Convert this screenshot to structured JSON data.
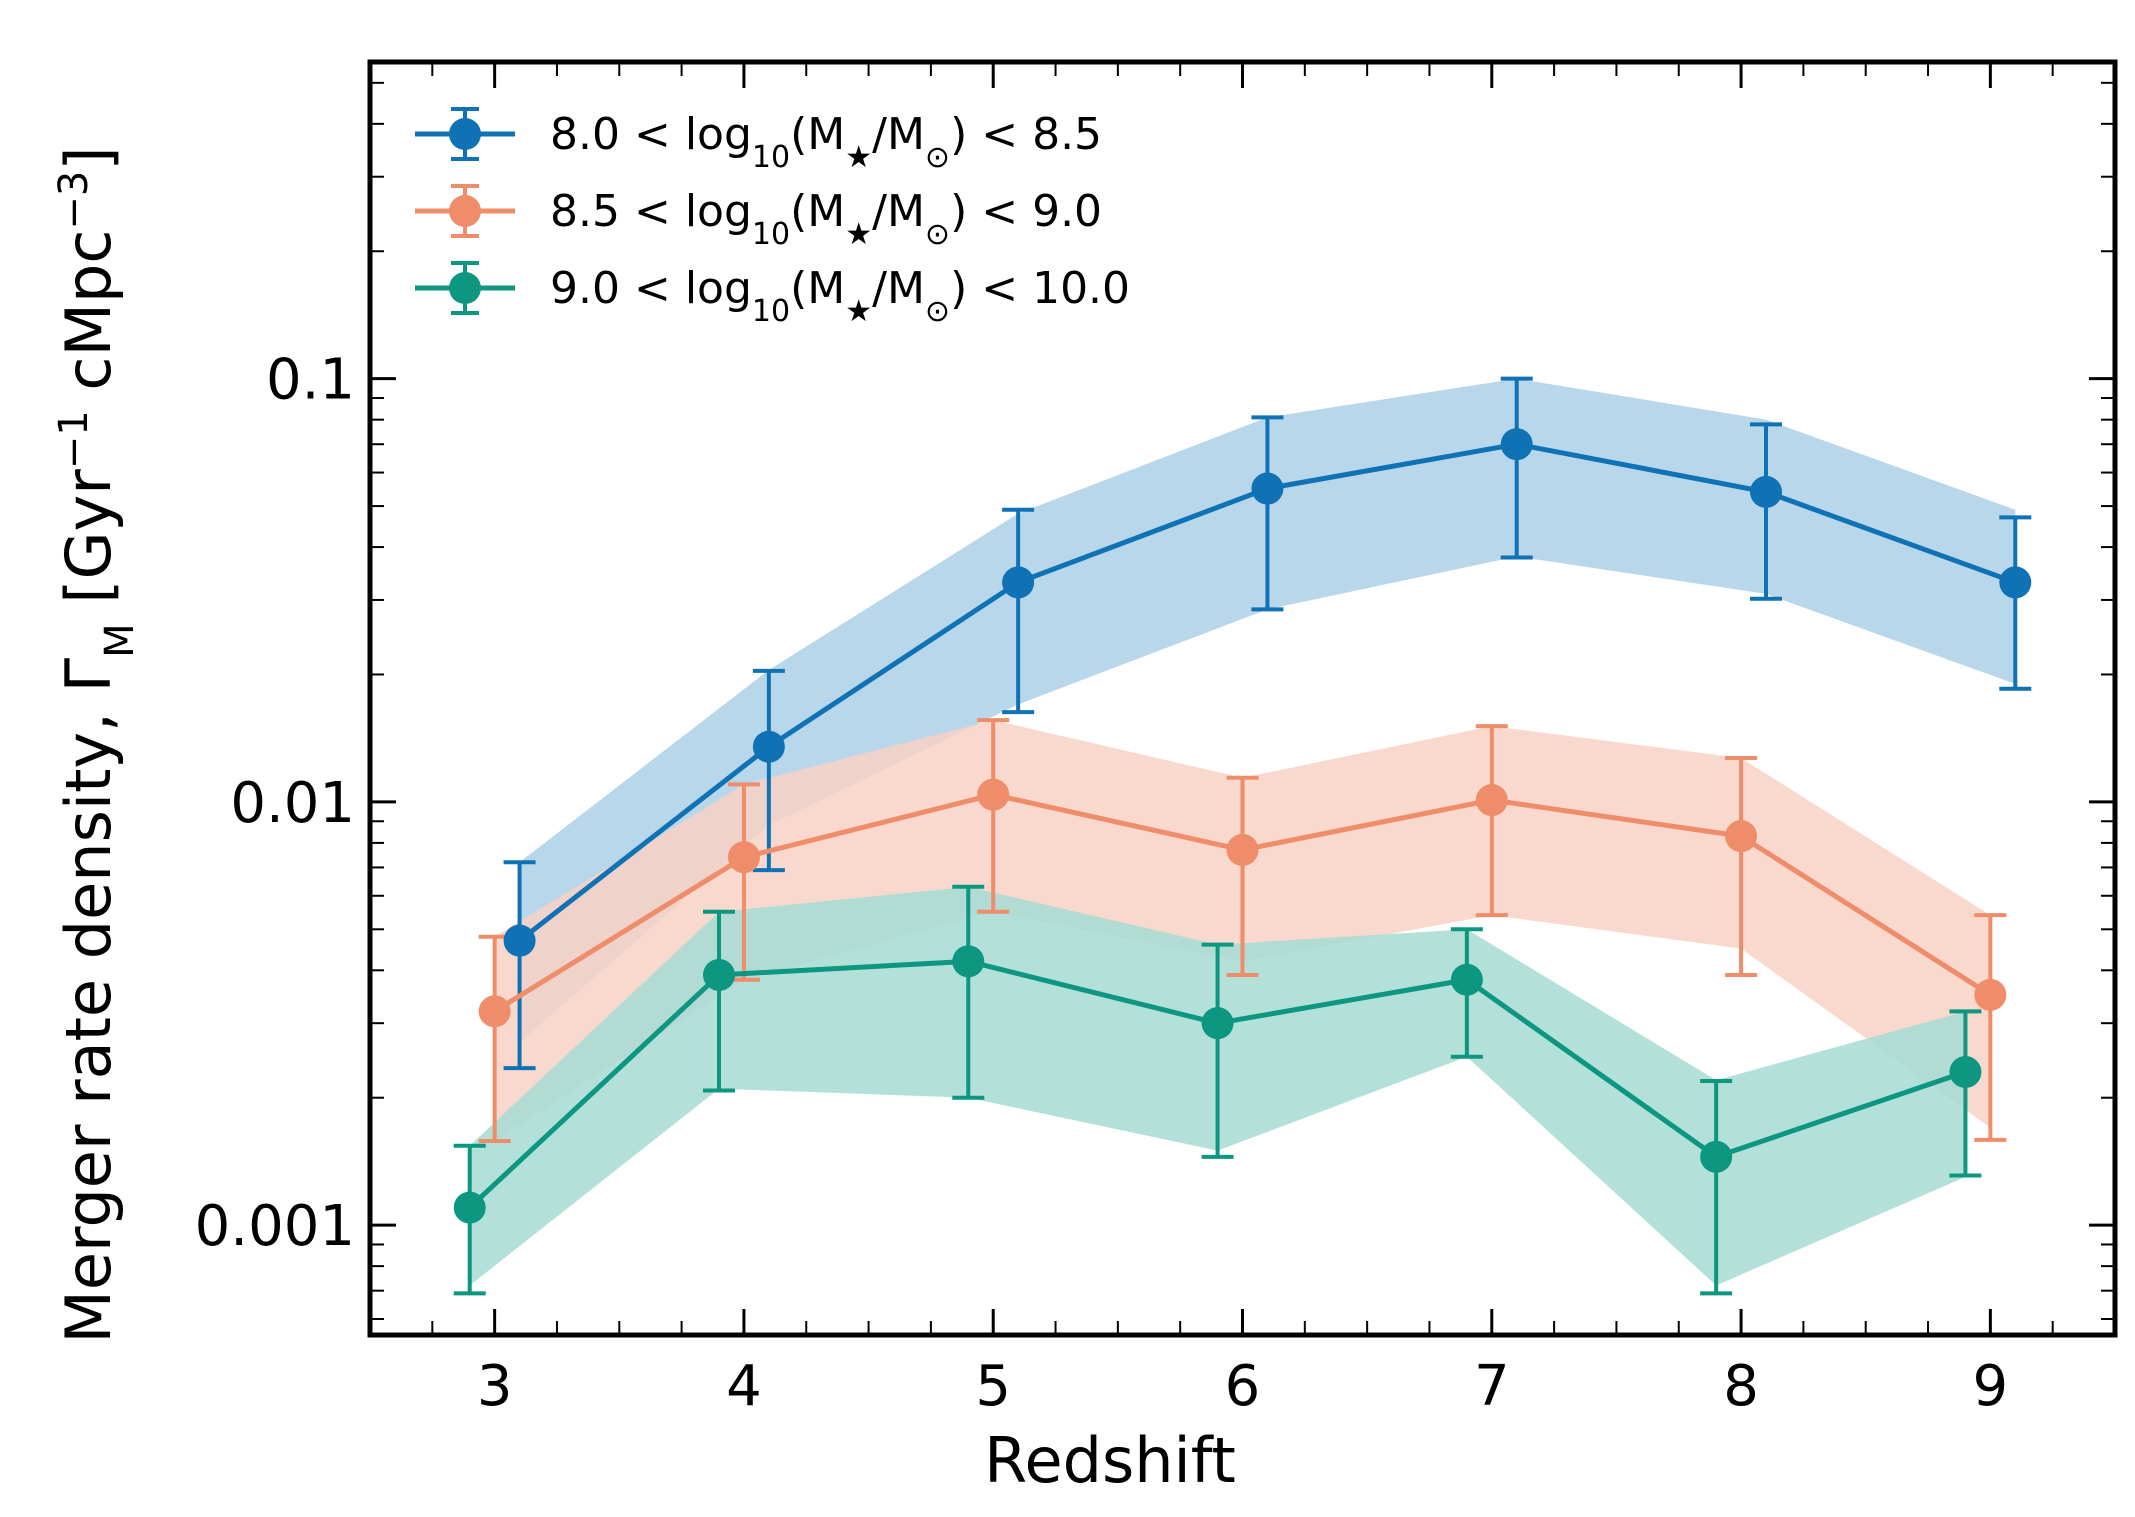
{
  "chart_data": {
    "type": "line",
    "title": "",
    "xlabel": "Redshift",
    "ylabel": {
      "main": "Merger rate density, Γ",
      "main_sub": "M",
      "units_open": " [Gyr",
      "units_exp1": "−1",
      "units_mid": " cMpc",
      "units_exp2": "−3",
      "units_close": "]"
    },
    "xlim": [
      2.5,
      9.5
    ],
    "ylim": [
      0.00055,
      0.56
    ],
    "yscale": "log",
    "x_ticks": [
      3,
      4,
      5,
      6,
      7,
      8,
      9
    ],
    "x_tick_labels": [
      "3",
      "4",
      "5",
      "6",
      "7",
      "8",
      "9"
    ],
    "y_ticks": [
      0.001,
      0.01,
      0.1
    ],
    "y_tick_labels": [
      "0.001",
      "0.01",
      "0.1"
    ],
    "legend_position": "top-left",
    "series": [
      {
        "name": "8.0 < log10(M★/M⊙) < 8.5",
        "legend": {
          "pre": "8.0 < log",
          "sub": "10",
          "mid": "(M",
          "star": "★",
          "mid2": "/M",
          "sun": "⊙",
          "post": ") < 8.5"
        },
        "color": "#0f72b4",
        "fill": "#abd0e8",
        "x": [
          3.1,
          4.1,
          5.1,
          6.1,
          7.1,
          8.1,
          9.1
        ],
        "y": [
          0.0047,
          0.0135,
          0.033,
          0.055,
          0.07,
          0.054,
          0.033
        ],
        "err_low": [
          0.00235,
          0.0069,
          0.0163,
          0.0285,
          0.0378,
          0.0302,
          0.0185
        ],
        "err_high": [
          0.0072,
          0.0204,
          0.049,
          0.081,
          0.1,
          0.078,
          0.047
        ],
        "band_low": [
          0.0027,
          0.0088,
          0.017,
          0.0285,
          0.038,
          0.031,
          0.019
        ],
        "band_high": [
          0.0072,
          0.0205,
          0.048,
          0.081,
          0.1,
          0.08,
          0.049
        ]
      },
      {
        "name": "8.5 < log10(M★/M⊙) < 9.0",
        "legend": {
          "pre": "8.5 < log",
          "sub": "10",
          "mid": "(M",
          "star": "★",
          "mid2": "/M",
          "sun": "⊙",
          "post": ") < 9.0"
        },
        "color": "#ef8c69",
        "fill": "#f8d2c4",
        "x": [
          3.0,
          4.0,
          5.0,
          6.0,
          7.0,
          8.0,
          9.0
        ],
        "y": [
          0.0032,
          0.0074,
          0.0104,
          0.0077,
          0.0101,
          0.0083,
          0.0035
        ],
        "err_low": [
          0.00158,
          0.0038,
          0.0055,
          0.0039,
          0.0054,
          0.0039,
          0.00159
        ],
        "err_high": [
          0.0048,
          0.011,
          0.0156,
          0.0114,
          0.0151,
          0.0127,
          0.0054
        ],
        "band_low": [
          0.00158,
          0.0038,
          0.0055,
          0.0042,
          0.0054,
          0.0045,
          0.0017
        ],
        "band_high": [
          0.0048,
          0.011,
          0.0156,
          0.0114,
          0.0151,
          0.0127,
          0.0054
        ]
      },
      {
        "name": "9.0 < log10(M★/M⊙) < 10.0",
        "legend": {
          "pre": "9.0 < log",
          "sub": "10",
          "mid": "(M",
          "star": "★",
          "mid2": "/M",
          "sun": "⊙",
          "post": ") < 10.0"
        },
        "color": "#0d9680",
        "fill": "#a6dcd3",
        "x": [
          2.9,
          3.9,
          4.9,
          5.9,
          6.9,
          7.9,
          8.9
        ],
        "y": [
          0.0011,
          0.0039,
          0.0042,
          0.003,
          0.0038,
          0.00145,
          0.0023
        ],
        "err_low": [
          0.00069,
          0.00208,
          0.002,
          0.00145,
          0.0025,
          0.00069,
          0.00131
        ],
        "err_high": [
          0.00154,
          0.0055,
          0.0063,
          0.0046,
          0.005,
          0.00219,
          0.0032
        ],
        "band_low": [
          0.00072,
          0.0021,
          0.002,
          0.0015,
          0.0025,
          0.00072,
          0.0013
        ],
        "band_high": [
          0.00154,
          0.0055,
          0.0063,
          0.0046,
          0.005,
          0.0022,
          0.0032
        ]
      }
    ]
  }
}
